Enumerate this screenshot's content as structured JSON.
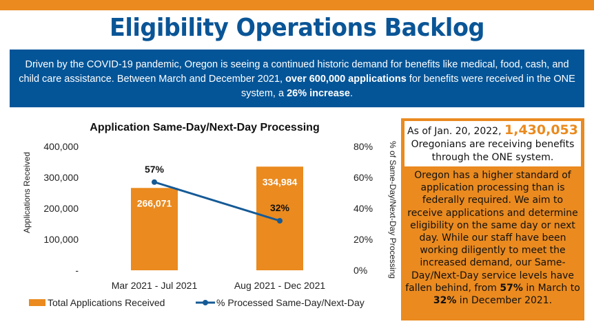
{
  "header": {
    "title": "Eligibility Operations Backlog"
  },
  "intro": {
    "part1": "Driven by the COVID-19 pandemic, Oregon is seeing a continued historic demand for benefits like medical, food, cash, and child care assistance. Between March and December 2021, ",
    "bold1": "over 600,000 applications",
    "part2": " for benefits were received in the ONE system, a ",
    "bold2": "26% increase",
    "part3": "."
  },
  "sidebar": {
    "as_of": "As of Jan. 20, 2022, ",
    "count": "1,430,053",
    "count_text": "Oregonians are receiving benefits through the ONE system.",
    "body1": "Oregon has a higher standard of application processing than is federally required. We aim to receive applications and determine eligibility on the same day or next day. While our staff have been working diligently to meet the increased demand, our Same-Day/Next-Day service levels have fallen behind, from ",
    "bold1": "57%",
    "body2": " in March to ",
    "bold2": "32%",
    "body3": " in December 2021."
  },
  "colors": {
    "orange": "#ea8a1f",
    "blue": "#0a5596",
    "line": "#155a96"
  },
  "chart_data": {
    "type": "bar+line",
    "title": "Application Same-Day/Next-Day Processing",
    "categories": [
      "Mar 2021 - Jul 2021",
      "Aug 2021 - Dec 2021"
    ],
    "series": [
      {
        "name": "Total Applications Received",
        "type": "bar",
        "axis": "left",
        "values": [
          266071,
          334984
        ],
        "labels": [
          "266,071",
          "334,984"
        ]
      },
      {
        "name": "% Processed Same-Day/Next-Day",
        "type": "line",
        "axis": "right",
        "values": [
          57,
          32
        ],
        "labels": [
          "57%",
          "32%"
        ]
      }
    ],
    "ylabel": "Applications Received",
    "ylim": [
      0,
      400000
    ],
    "yticks": [
      "-",
      "100,000",
      "200,000",
      "300,000",
      "400,000"
    ],
    "y2label": "% of Same-Day/Next-Day Processing",
    "y2lim": [
      0,
      80
    ],
    "y2ticks": [
      "0%",
      "20%",
      "40%",
      "60%",
      "80%"
    ],
    "grid": false,
    "legend": "bottom"
  }
}
